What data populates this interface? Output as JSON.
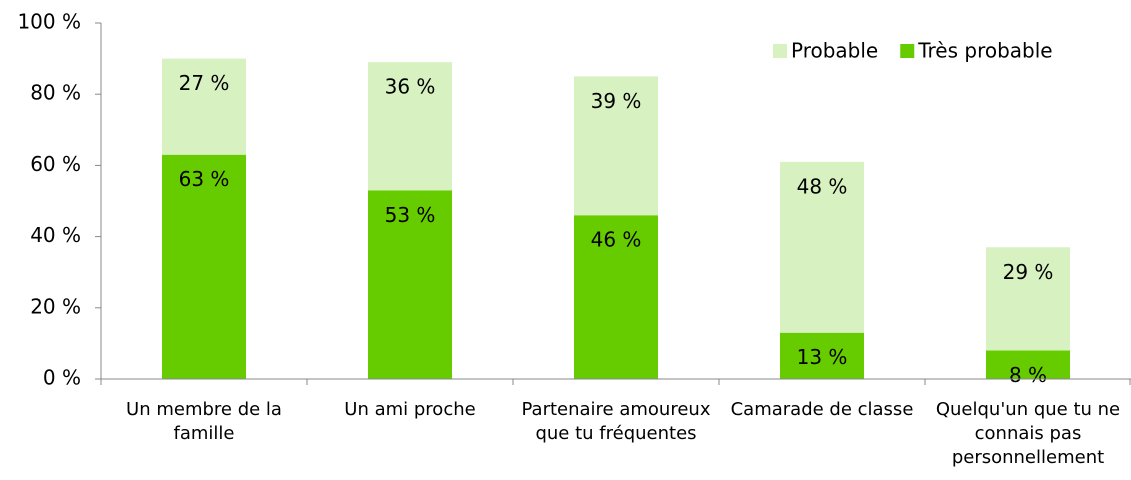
{
  "chart_data": {
    "type": "stacked_bar",
    "categories": [
      "Un membre de la famille",
      "Un ami proche",
      "Partenaire amoureux que tu fréquentes",
      "Camarade de classe",
      "Quelqu'un que tu ne connais pas personnellement"
    ],
    "series": [
      {
        "name": "Très probable",
        "color": "#66cc00",
        "values": [
          63,
          53,
          46,
          13,
          8
        ],
        "value_labels": [
          "63 %",
          "53 %",
          "46 %",
          "13 %",
          "8 %"
        ]
      },
      {
        "name": "Probable",
        "color": "#d7f1c1",
        "values": [
          27,
          36,
          39,
          48,
          29
        ],
        "value_labels": [
          "27 %",
          "36 %",
          "39 %",
          "48 %",
          "29 %"
        ]
      }
    ],
    "ylim": [
      0,
      100
    ],
    "yticks": [
      {
        "value": 0,
        "label": "0 %"
      },
      {
        "value": 20,
        "label": "20 %"
      },
      {
        "value": 40,
        "label": "40 %"
      },
      {
        "value": 60,
        "label": "60 %"
      },
      {
        "value": 80,
        "label": "80 %"
      },
      {
        "value": 100,
        "label": "100 %"
      }
    ],
    "legend": "top-right"
  }
}
